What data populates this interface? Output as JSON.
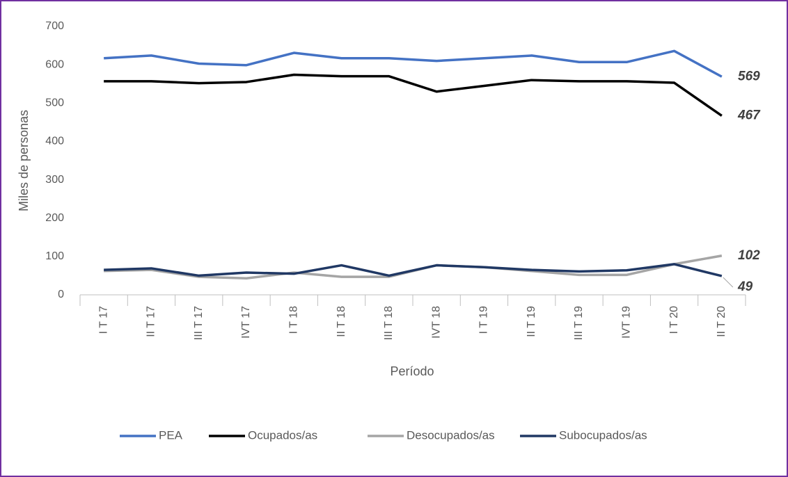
{
  "chart_data": {
    "type": "line",
    "x_label": "Período",
    "y_label": "Miles de personas",
    "categories": [
      "I T 17",
      "II T 17",
      "III T 17",
      "IVT 17",
      "I T 18",
      "II T 18",
      "III T 18",
      "IVT 18",
      "I T 19",
      "II T 19",
      "III T 19",
      "IVT 19",
      "I T 20",
      "II T 20"
    ],
    "series": [
      {
        "name": "PEA",
        "color": "#4472c4",
        "values": [
          617,
          624,
          603,
          599,
          631,
          617,
          617,
          610,
          617,
          624,
          607,
          607,
          636,
          569
        ]
      },
      {
        "name": "Ocupados/as",
        "color": "#000000",
        "values": [
          557,
          557,
          552,
          555,
          574,
          570,
          570,
          530,
          545,
          560,
          557,
          557,
          553,
          467
        ]
      },
      {
        "name": "Desocupados/as",
        "color": "#a5a5a5",
        "values": [
          62,
          65,
          47,
          43,
          58,
          47,
          47,
          77,
          72,
          62,
          52,
          52,
          80,
          102
        ]
      },
      {
        "name": "Subocupados/as",
        "color": "#203864",
        "values": [
          65,
          69,
          50,
          58,
          55,
          77,
          50,
          77,
          72,
          65,
          61,
          64,
          80,
          49
        ]
      }
    ],
    "ylim": [
      0,
      700
    ],
    "yticks": [
      0,
      100,
      200,
      300,
      400,
      500,
      600,
      700
    ],
    "grid": false,
    "legend": "bottom"
  }
}
